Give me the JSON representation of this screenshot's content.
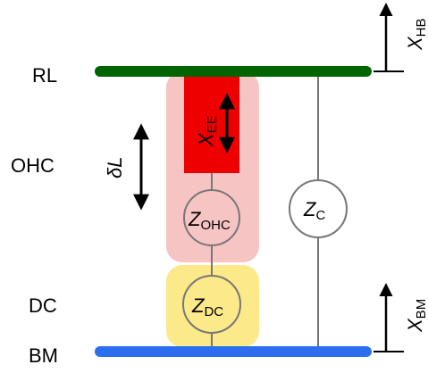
{
  "layers": {
    "rl": "RL",
    "ohc": "OHC",
    "dc": "DC",
    "bm": "BM"
  },
  "elements": {
    "z_ohc": {
      "symbol": "Z",
      "subscript": "OHC"
    },
    "z_dc": {
      "symbol": "Z",
      "subscript": "DC"
    },
    "z_c": {
      "symbol": "Z",
      "subscript": "C"
    },
    "x_ee": {
      "symbol": "X",
      "subscript": "EE"
    },
    "delta_l": {
      "symbol": "δL"
    }
  },
  "displacements": {
    "x_hb": {
      "symbol": "X",
      "subscript": "HB"
    },
    "x_bm": {
      "symbol": "X",
      "subscript": "BM"
    }
  },
  "colors": {
    "rl_bar": "#006400",
    "bm_bar": "#2b6ef0",
    "ohc_region": "#f7c4c4",
    "ee_block": "#ee0000",
    "dc_region": "#fbe98a",
    "circle_stroke": "#777777",
    "wire": "#777777",
    "arrow": "#000000"
  }
}
